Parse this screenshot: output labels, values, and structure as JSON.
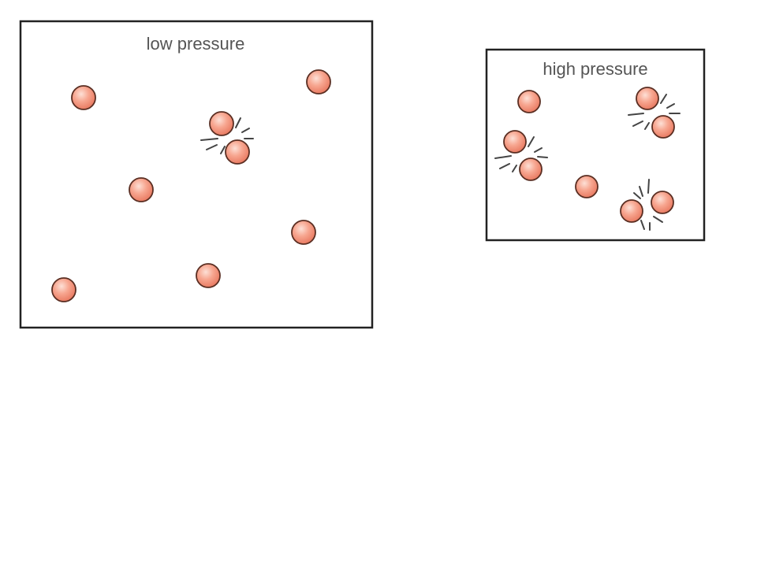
{
  "low_pressure": {
    "label": "low pressure"
  },
  "high_pressure": {
    "label": "high pressure"
  },
  "colors": {
    "particle": "#f39b86",
    "particle_outline": "#5a2e22",
    "box_border": "#222222"
  }
}
